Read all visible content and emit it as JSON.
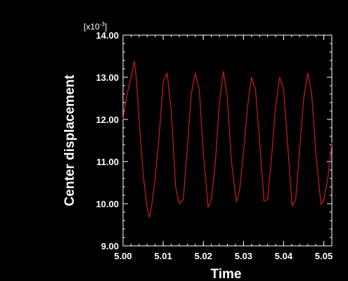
{
  "chart_data": {
    "type": "line",
    "title": "",
    "xlabel": "Time",
    "ylabel": "Center displacement",
    "y_multiplier_label": "[x10",
    "y_multiplier_exponent": "-3",
    "y_multiplier_close": "]",
    "xlim": [
      5.0,
      5.052
    ],
    "ylim": [
      9.0,
      14.0
    ],
    "x_ticks": [
      5.0,
      5.01,
      5.02,
      5.03,
      5.04,
      5.05
    ],
    "x_tick_labels": [
      "5.00",
      "5.01",
      "5.02",
      "5.03",
      "5.04",
      "5.05"
    ],
    "y_ticks": [
      9,
      10,
      11,
      12,
      13,
      14
    ],
    "y_tick_labels": [
      "9.00",
      "10.00",
      "11.00",
      "12.00",
      "13.00",
      "14.00"
    ],
    "grid": false,
    "background_color": "#000000",
    "axis_color": "#ffffff",
    "series": [
      {
        "color": "#c0191c",
        "x": [
          5.0,
          5.001,
          5.002,
          5.0028,
          5.0033,
          5.004,
          5.005,
          5.006,
          5.0066,
          5.0072,
          5.008,
          5.009,
          5.01,
          5.011,
          5.012,
          5.0131,
          5.014,
          5.015,
          5.016,
          5.017,
          5.018,
          5.019,
          5.02,
          5.0212,
          5.022,
          5.023,
          5.024,
          5.025,
          5.026,
          5.027,
          5.0282,
          5.029,
          5.03,
          5.031,
          5.032,
          5.033,
          5.034,
          5.0351,
          5.036,
          5.037,
          5.038,
          5.039,
          5.04,
          5.041,
          5.0421,
          5.043,
          5.044,
          5.045,
          5.046,
          5.047,
          5.048,
          5.0493,
          5.05,
          5.051,
          5.052
        ],
        "y": [
          12.0,
          12.6,
          13.0,
          13.38,
          13.0,
          12.0,
          10.7,
          9.9,
          9.68,
          10.0,
          10.6,
          11.6,
          12.9,
          13.1,
          12.2,
          10.4,
          10.0,
          10.1,
          11.3,
          12.6,
          13.1,
          12.7,
          11.2,
          9.92,
          10.1,
          11.0,
          12.4,
          13.14,
          12.5,
          11.0,
          10.05,
          10.3,
          11.2,
          12.3,
          13.0,
          12.7,
          11.5,
          10.06,
          10.1,
          11.1,
          12.3,
          13.0,
          12.7,
          11.4,
          9.95,
          10.1,
          11.3,
          12.5,
          13.1,
          12.6,
          11.2,
          9.98,
          10.1,
          10.6,
          11.45
        ]
      }
    ]
  }
}
